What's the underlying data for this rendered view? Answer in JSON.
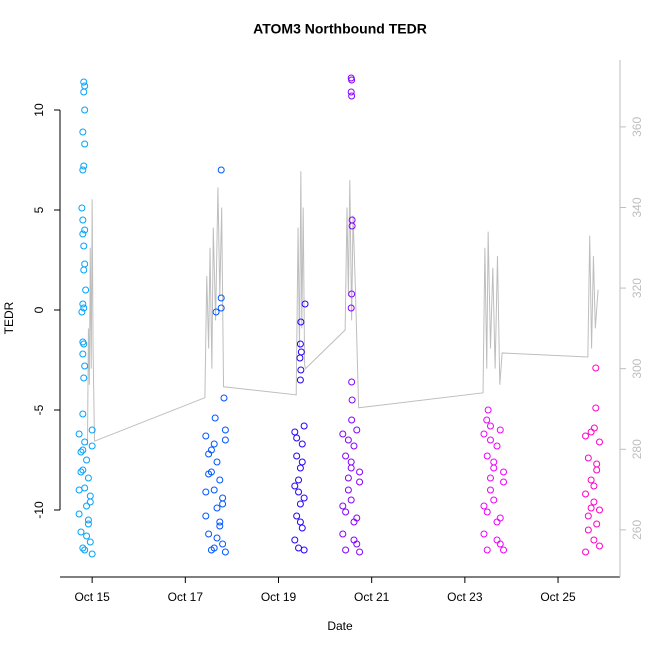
{
  "chart_data": {
    "type": "scatter",
    "title": "ATOM3 Northbound TEDR",
    "xlabel": "Date",
    "ylabel": "TEDR",
    "xlim": [
      14.31,
      26.33
    ],
    "xticks": [
      {
        "value": 15,
        "label": "Oct 15"
      },
      {
        "value": 17,
        "label": "Oct 17"
      },
      {
        "value": 19,
        "label": "Oct 19"
      },
      {
        "value": 21,
        "label": "Oct 21"
      },
      {
        "value": 23,
        "label": "Oct 23"
      },
      {
        "value": 25,
        "label": "Oct 25"
      }
    ],
    "ylim": [
      -13.35,
      12.5
    ],
    "yticks": [
      -10,
      -5,
      0,
      5,
      10
    ],
    "y2lim": [
      248.3,
      376.6
    ],
    "y2ticks": [
      260,
      280,
      300,
      320,
      340,
      360
    ],
    "y2color": "#bebebe",
    "series": [
      {
        "type": "line",
        "axis": "y2",
        "color": "#bebebe",
        "x": [
          14.9,
          14.92,
          14.94,
          14.96,
          14.98,
          15.0,
          15.02,
          15.05,
          17.42,
          17.46,
          17.5,
          17.53,
          17.57,
          17.6,
          17.65,
          17.7,
          17.74,
          17.78,
          17.82,
          19.38,
          19.42,
          19.45,
          19.48,
          19.5,
          19.53,
          19.56,
          19.58,
          20.43,
          20.47,
          20.5,
          20.53,
          20.57,
          20.6,
          20.65,
          20.72,
          23.39,
          23.43,
          23.47,
          23.5,
          23.55,
          23.6,
          23.65,
          23.7,
          23.75,
          23.8,
          25.64,
          25.68,
          25.72,
          25.76,
          25.8,
          25.86
        ],
        "values": [
          281,
          310,
          296,
          330,
          300,
          342,
          305,
          282,
          292.8,
          323,
          305,
          330,
          300,
          335,
          312,
          345,
          318,
          340,
          295.5,
          293.5,
          335,
          305,
          349,
          310,
          340,
          301,
          300,
          309.6,
          340,
          318,
          346.8,
          312,
          338,
          320,
          290.3,
          294,
          330,
          300,
          334,
          305,
          325,
          300,
          328,
          296,
          303.9,
          302.9,
          333,
          305,
          328,
          310,
          319.6
        ]
      },
      {
        "color": "#00a2ff",
        "x": [
          14.82,
          14.84,
          14.82,
          14.84,
          14.8,
          14.84,
          14.82,
          14.8,
          14.78,
          14.8,
          14.84,
          14.8,
          14.82,
          14.84,
          14.82,
          14.86,
          14.8,
          14.82,
          14.78,
          14.8,
          14.82,
          14.8,
          14.84,
          14.82,
          14.8,
          14.72,
          14.76,
          14.8,
          14.84,
          14.88,
          14.92,
          14.96,
          15.0,
          14.72,
          14.76,
          14.8,
          14.84,
          14.88,
          14.92,
          14.96,
          15.0,
          14.72,
          14.76,
          14.8,
          14.84,
          14.88,
          14.92,
          14.96,
          15.0
        ],
        "values": [
          11.4,
          11.2,
          10.9,
          10.0,
          8.9,
          8.3,
          7.2,
          7.0,
          5.1,
          4.5,
          4.0,
          3.8,
          3.2,
          2.3,
          2.0,
          1.0,
          0.3,
          0.1,
          -0.1,
          -1.6,
          -1.7,
          -2.2,
          -2.8,
          -3.4,
          -5.2,
          -6.2,
          -7.1,
          -8.0,
          -8.9,
          -9.8,
          -10.7,
          -11.6,
          -12.2,
          -10.2,
          -11.1,
          -11.9,
          -6.6,
          -7.5,
          -8.4,
          -9.3,
          -6.0,
          -9.0,
          -8.1,
          -7.0,
          -12.0,
          -11.3,
          -10.5,
          -9.6,
          -6.8
        ]
      },
      {
        "color": "#0055ff",
        "x": [
          17.77,
          17.77,
          17.77,
          17.66,
          17.83,
          17.64,
          17.44,
          17.5,
          17.56,
          17.62,
          17.68,
          17.74,
          17.8,
          17.86,
          17.44,
          17.5,
          17.56,
          17.62,
          17.68,
          17.74,
          17.8,
          17.86,
          17.44,
          17.5,
          17.56,
          17.62,
          17.68,
          17.74,
          17.8,
          17.86
        ],
        "values": [
          7.0,
          0.6,
          0.1,
          -0.1,
          -4.4,
          -5.4,
          -6.3,
          -7.2,
          -8.1,
          -9.0,
          -9.9,
          -10.8,
          -11.7,
          -12.1,
          -10.3,
          -11.2,
          -12.0,
          -6.7,
          -7.6,
          -8.5,
          -9.4,
          -6.0,
          -9.1,
          -8.2,
          -7.0,
          -11.9,
          -11.4,
          -10.6,
          -9.7,
          -6.5
        ]
      },
      {
        "color": "#2200ff",
        "x": [
          19.57,
          19.48,
          19.47,
          19.49,
          19.46,
          19.48,
          19.47,
          19.35,
          19.39,
          19.43,
          19.47,
          19.51,
          19.55,
          19.35,
          19.39,
          19.43,
          19.47,
          19.51,
          19.55,
          19.35,
          19.39,
          19.43,
          19.47,
          19.51,
          19.55
        ],
        "values": [
          0.3,
          -0.6,
          -1.7,
          -2.1,
          -2.4,
          -3.0,
          -3.5,
          -6.1,
          -7.3,
          -8.5,
          -9.7,
          -10.9,
          -12.0,
          -11.5,
          -10.3,
          -9.1,
          -7.9,
          -6.7,
          -5.8,
          -8.8,
          -6.4,
          -11.9,
          -10.6,
          -7.6,
          -9.4
        ]
      },
      {
        "color": "#8800ff",
        "x": [
          20.56,
          20.57,
          20.56,
          20.57,
          20.58,
          20.58,
          20.57,
          20.56,
          20.57,
          20.58,
          20.57,
          20.38,
          20.44,
          20.5,
          20.56,
          20.62,
          20.68,
          20.74,
          20.38,
          20.44,
          20.5,
          20.56,
          20.62,
          20.68,
          20.74,
          20.38,
          20.44,
          20.5,
          20.56,
          20.62,
          20.68,
          20.74
        ],
        "values": [
          11.6,
          11.5,
          10.9,
          10.7,
          4.5,
          4.2,
          0.8,
          0.1,
          -3.6,
          -4.5,
          -5.5,
          -6.2,
          -7.3,
          -8.4,
          -9.5,
          -10.6,
          -11.7,
          -12.1,
          -11.2,
          -10.1,
          -9.0,
          -7.9,
          -6.8,
          -6.0,
          -8.6,
          -9.8,
          -12.0,
          -6.5,
          -7.6,
          -11.5,
          -10.4,
          -8.1
        ]
      },
      {
        "color": "#ee00ff",
        "x": [
          23.5,
          23.47,
          23.55,
          23.41,
          23.48,
          23.55,
          23.62,
          23.69,
          23.76,
          23.83,
          23.41,
          23.48,
          23.55,
          23.62,
          23.69,
          23.76,
          23.83,
          23.41,
          23.48,
          23.55,
          23.62,
          23.69,
          23.76,
          23.83
        ],
        "values": [
          -5.0,
          -5.5,
          -5.8,
          -6.2,
          -7.3,
          -8.4,
          -9.5,
          -10.6,
          -11.7,
          -12.0,
          -11.2,
          -10.1,
          -9.0,
          -7.9,
          -6.8,
          -6.0,
          -8.6,
          -9.8,
          -12.0,
          -6.5,
          -7.6,
          -11.5,
          -10.4,
          -8.1
        ]
      },
      {
        "color": "#ff00c8",
        "x": [
          25.81,
          25.81,
          25.78,
          25.59,
          25.65,
          25.71,
          25.77,
          25.83,
          25.89,
          25.59,
          25.65,
          25.71,
          25.77,
          25.83,
          25.89,
          25.59,
          25.65,
          25.71,
          25.77,
          25.83,
          25.89
        ],
        "values": [
          -2.9,
          -4.9,
          -5.9,
          -6.3,
          -7.4,
          -8.5,
          -9.6,
          -10.7,
          -11.8,
          -12.1,
          -11.0,
          -9.9,
          -8.8,
          -7.7,
          -6.6,
          -9.2,
          -10.3,
          -6.1,
          -11.5,
          -8.0,
          -10.0
        ]
      }
    ]
  }
}
